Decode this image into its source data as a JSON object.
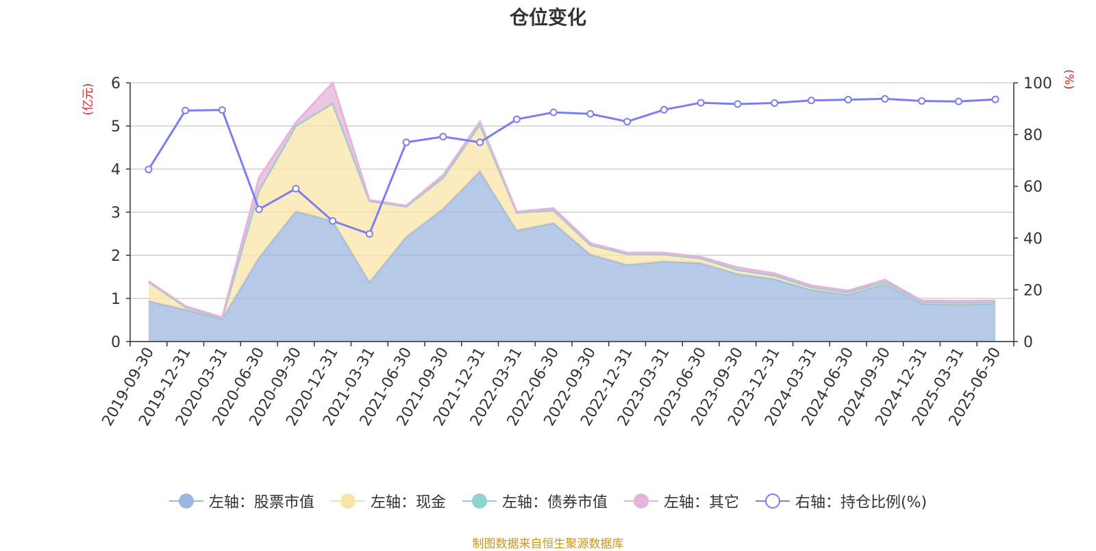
{
  "chart_data": {
    "type": "area",
    "title": "仓位变化",
    "y_left_unit": "(亿元)",
    "y_right_unit": "(%)",
    "y_left_ticks": [
      "0",
      "1",
      "2",
      "3",
      "4",
      "5",
      "6"
    ],
    "y_right_ticks": [
      "0",
      "20",
      "40",
      "60",
      "80",
      "100"
    ],
    "ylim_left": [
      0,
      6
    ],
    "ylim_right": [
      0,
      100
    ],
    "stacked": true,
    "grid": true,
    "legend_position": "bottom",
    "categories": [
      "2019-09-30",
      "2019-12-31",
      "2020-03-31",
      "2020-06-30",
      "2020-09-30",
      "2020-12-31",
      "2021-03-31",
      "2021-06-30",
      "2021-09-30",
      "2021-12-31",
      "2022-03-31",
      "2022-06-30",
      "2022-09-30",
      "2022-12-31",
      "2023-03-31",
      "2023-06-30",
      "2023-09-30",
      "2023-12-31",
      "2024-03-31",
      "2024-06-30",
      "2024-09-30",
      "2024-12-31",
      "2025-03-31",
      "2025-06-30"
    ],
    "series": [
      {
        "name": "左轴：股票市值",
        "axis": "left",
        "color": "#9db8e0",
        "values": [
          0.94,
          0.74,
          0.53,
          1.95,
          3.02,
          2.8,
          1.38,
          2.43,
          3.08,
          3.95,
          2.58,
          2.75,
          2.02,
          1.78,
          1.86,
          1.82,
          1.57,
          1.45,
          1.2,
          1.09,
          1.34,
          0.88,
          0.86,
          0.88
        ]
      },
      {
        "name": "左轴：现金",
        "axis": "left",
        "color": "#f9e4a7",
        "values": [
          0.44,
          0.06,
          0.01,
          1.55,
          1.98,
          2.72,
          1.88,
          0.7,
          0.72,
          1.08,
          0.41,
          0.29,
          0.22,
          0.25,
          0.16,
          0.11,
          0.09,
          0.08,
          0.06,
          0.05,
          0.05,
          0.04,
          0.04,
          0.03
        ]
      },
      {
        "name": "左轴：债券市值",
        "axis": "left",
        "color": "#8fd3d0",
        "values": [
          0,
          0,
          0,
          0,
          0,
          0,
          0,
          0,
          0,
          0,
          0,
          0,
          0,
          0,
          0,
          0,
          0,
          0,
          0,
          0,
          0,
          0,
          0,
          0
        ]
      },
      {
        "name": "左轴：其它",
        "axis": "left",
        "color": "#e6b4da",
        "values": [
          0.02,
          0.02,
          0.02,
          0.3,
          0.08,
          0.48,
          0.02,
          0.02,
          0.06,
          0.07,
          0.02,
          0.05,
          0.04,
          0.03,
          0.04,
          0.03,
          0.06,
          0.05,
          0.04,
          0.04,
          0.04,
          0.03,
          0.04,
          0.04
        ]
      },
      {
        "name": "右轴：持仓比例(%)",
        "axis": "right",
        "type": "line",
        "color": "#7a7ef0",
        "values": [
          66.5,
          89.3,
          89.5,
          51.1,
          59.1,
          46.6,
          41.6,
          77.0,
          79.2,
          77.0,
          85.9,
          88.6,
          88.0,
          85.0,
          89.6,
          92.3,
          91.8,
          92.2,
          93.2,
          93.5,
          93.8,
          93.0,
          92.8,
          93.6
        ]
      }
    ]
  },
  "source_note": "制图数据来自恒生聚源数据库"
}
